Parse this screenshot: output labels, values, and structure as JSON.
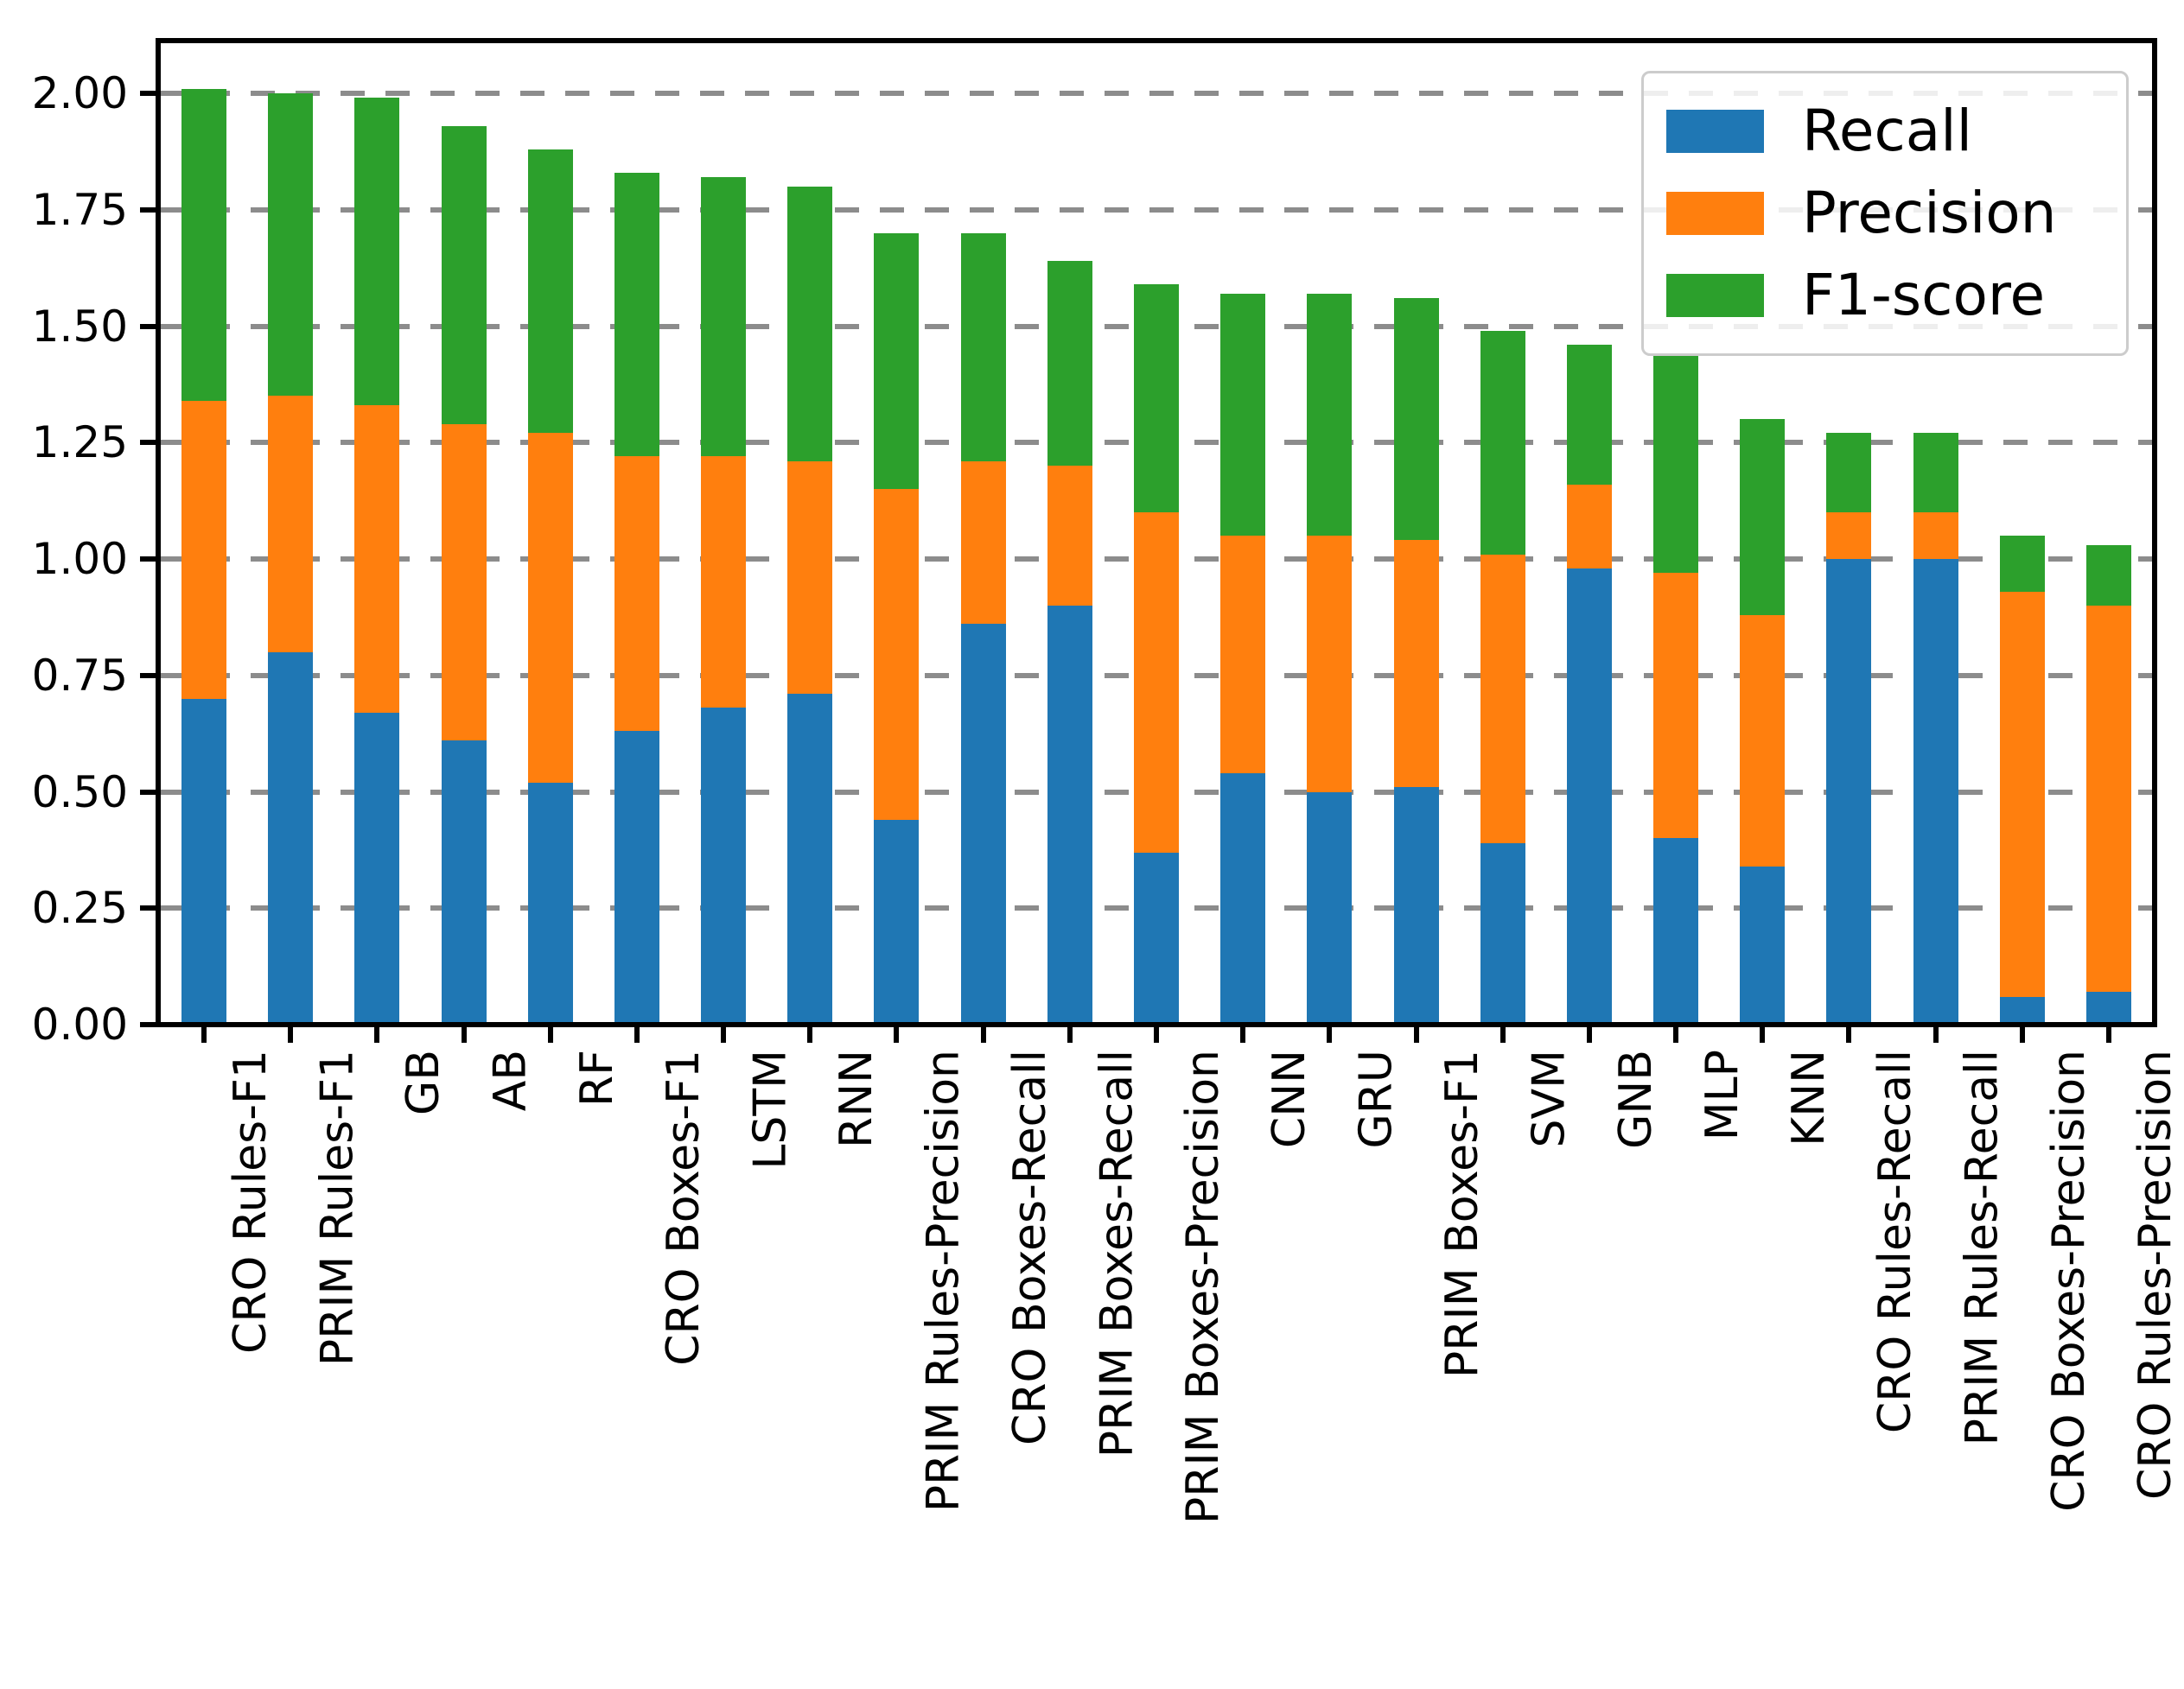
{
  "figure": {
    "background": "#ffffff",
    "grid_color": "#8c8c8c",
    "spine_color": "#000000",
    "legend_edge_color": "#cccccc"
  },
  "chart_data": {
    "type": "bar",
    "stacked": true,
    "orientation": "vertical",
    "title": "",
    "xlabel": "",
    "ylabel": "",
    "ylim": [
      0,
      2.11
    ],
    "grid": "horizontal dashed",
    "legend_position": "upper right",
    "x_tick_rotation": 90,
    "yticks": [
      "0.00",
      "0.25",
      "0.50",
      "0.75",
      "1.00",
      "1.25",
      "1.50",
      "1.75",
      "2.00"
    ],
    "ytick_values": [
      0,
      0.25,
      0.5,
      0.75,
      1.0,
      1.25,
      1.5,
      1.75,
      2.0
    ],
    "categories": [
      "CRO Rules-F1",
      "PRIM Rules-F1",
      "GB",
      "AB",
      "RF",
      "CRO Boxes-F1",
      "LSTM",
      "RNN",
      "PRIM Rules-Precision",
      "CRO Boxes-Recall",
      "PRIM Boxes-Recall",
      "PRIM Boxes-Precision",
      "CNN",
      "GRU",
      "PRIM Boxes-F1",
      "SVM",
      "GNB",
      "MLP",
      "KNN",
      "CRO Rules-Recall",
      "PRIM Rules-Recall",
      "CRO Boxes-Precision",
      "CRO Rules-Precision"
    ],
    "series": [
      {
        "name": "Recall",
        "color": "#1f77b4",
        "values": [
          0.7,
          0.8,
          0.67,
          0.61,
          0.52,
          0.63,
          0.68,
          0.71,
          0.44,
          0.86,
          0.9,
          0.37,
          0.54,
          0.5,
          0.51,
          0.39,
          0.98,
          0.4,
          0.34,
          1.0,
          1.0,
          0.06,
          0.07
        ]
      },
      {
        "name": "Precision",
        "color": "#ff7f0e",
        "values": [
          0.64,
          0.55,
          0.66,
          0.68,
          0.75,
          0.59,
          0.54,
          0.5,
          0.71,
          0.35,
          0.3,
          0.73,
          0.51,
          0.55,
          0.53,
          0.62,
          0.18,
          0.57,
          0.54,
          0.1,
          0.1,
          0.87,
          0.83
        ]
      },
      {
        "name": "F1-score",
        "color": "#2ca02c",
        "values": [
          0.67,
          0.65,
          0.66,
          0.64,
          0.61,
          0.61,
          0.6,
          0.59,
          0.55,
          0.49,
          0.44,
          0.49,
          0.52,
          0.52,
          0.52,
          0.48,
          0.3,
          0.47,
          0.42,
          0.17,
          0.17,
          0.12,
          0.13
        ]
      }
    ],
    "stack_totals": [
      2.01,
      2.0,
      1.99,
      1.93,
      1.88,
      1.83,
      1.82,
      1.8,
      1.7,
      1.7,
      1.64,
      1.59,
      1.57,
      1.57,
      1.56,
      1.49,
      1.46,
      1.44,
      1.3,
      1.27,
      1.27,
      1.05,
      1.03
    ]
  }
}
